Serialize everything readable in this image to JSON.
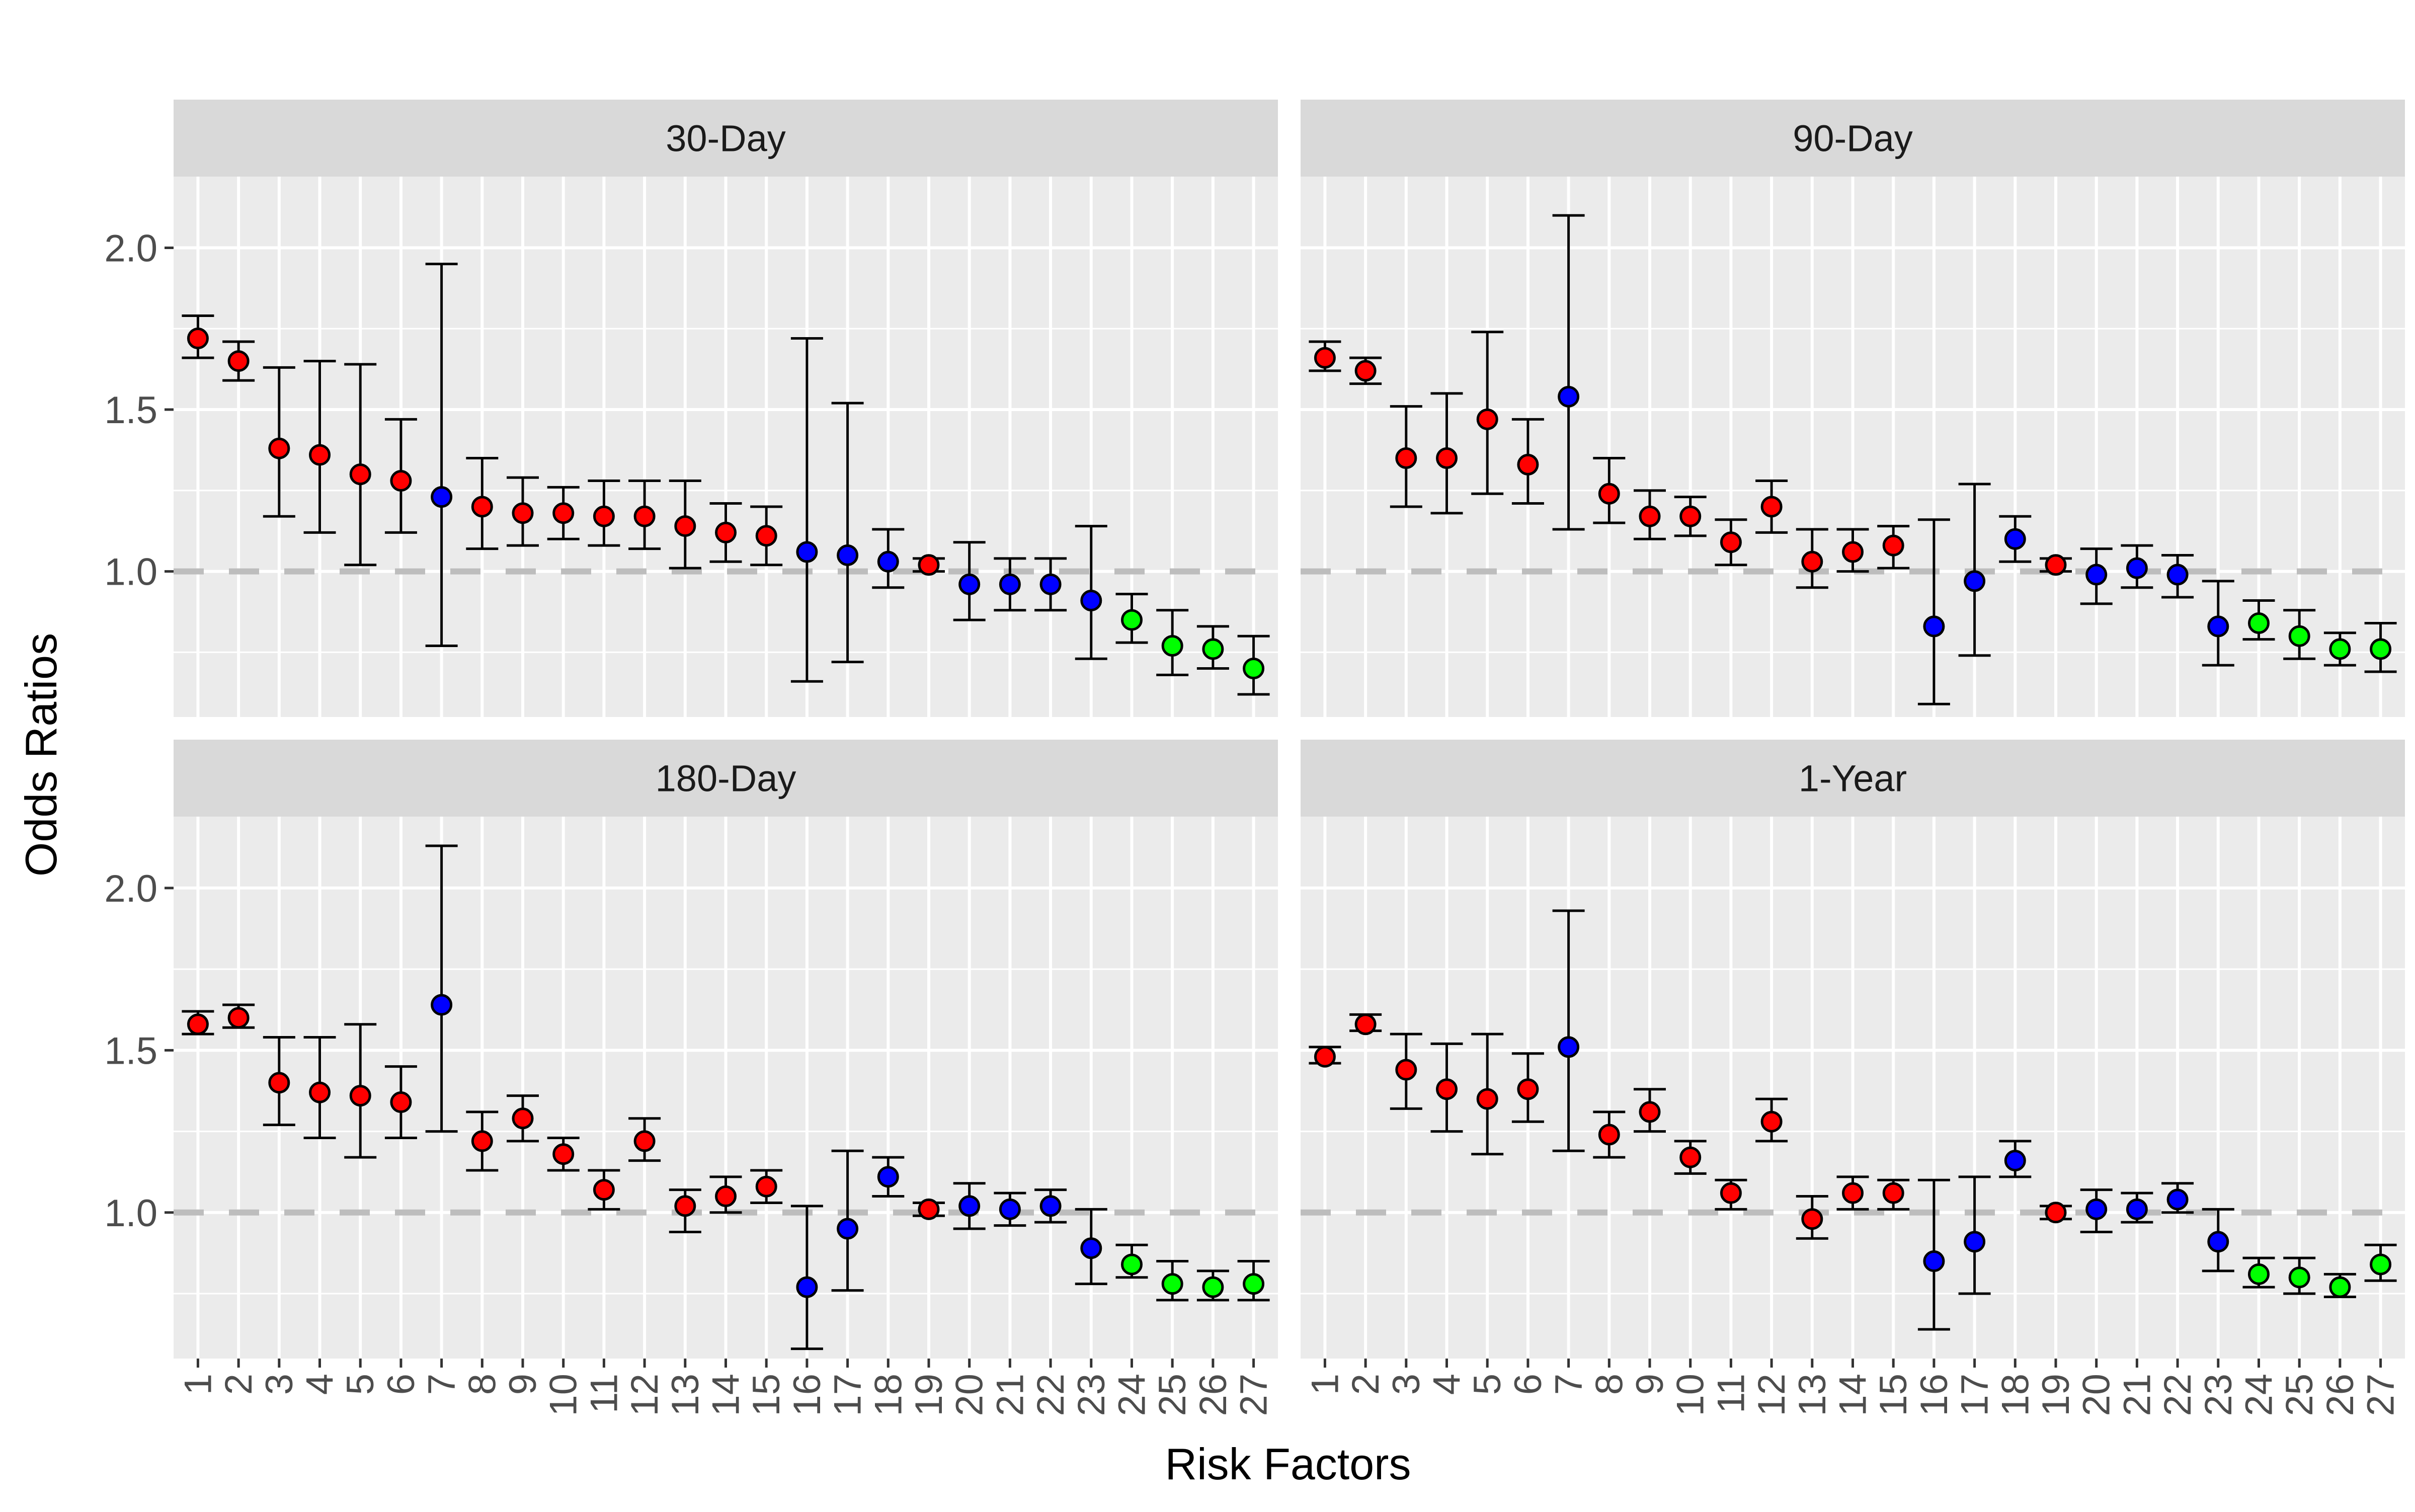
{
  "chart_data": {
    "type": "scatter",
    "facet_layout": "2x2",
    "xlabel": "Risk Factors",
    "ylabel": "Odds Ratios",
    "x": [
      1,
      2,
      3,
      4,
      5,
      6,
      7,
      8,
      9,
      10,
      11,
      12,
      13,
      14,
      15,
      16,
      17,
      18,
      19,
      20,
      21,
      22,
      23,
      24,
      25,
      26,
      27
    ],
    "yticks": [
      "1.0",
      "1.5",
      "2.0"
    ],
    "ylim": [
      0.55,
      2.22
    ],
    "reference_line": 1.0,
    "grid": true,
    "colors": {
      "red": "#ff0000",
      "blue": "#0000ff",
      "green": "#00ff00",
      "panel_bg": "#ebebeb",
      "strip_bg": "#d9d9d9",
      "refline": "#bdbdbd"
    },
    "point_colors": [
      "red",
      "red",
      "red",
      "red",
      "red",
      "red",
      "blue",
      "red",
      "red",
      "red",
      "red",
      "red",
      "red",
      "red",
      "red",
      "blue",
      "blue",
      "blue",
      "red",
      "blue",
      "blue",
      "blue",
      "blue",
      "green",
      "green",
      "green",
      "green"
    ],
    "panels": [
      {
        "title": "30-Day",
        "or": [
          1.72,
          1.65,
          1.38,
          1.36,
          1.3,
          1.28,
          1.23,
          1.2,
          1.18,
          1.18,
          1.17,
          1.17,
          1.14,
          1.12,
          1.11,
          1.06,
          1.05,
          1.03,
          1.02,
          0.96,
          0.96,
          0.96,
          0.91,
          0.85,
          0.77,
          0.76,
          0.7
        ],
        "lower": [
          1.66,
          1.59,
          1.17,
          1.12,
          1.02,
          1.12,
          0.77,
          1.07,
          1.08,
          1.1,
          1.08,
          1.07,
          1.01,
          1.03,
          1.02,
          0.66,
          0.72,
          0.95,
          1.0,
          0.85,
          0.88,
          0.88,
          0.73,
          0.78,
          0.68,
          0.7,
          0.62
        ],
        "upper": [
          1.79,
          1.71,
          1.63,
          1.65,
          1.64,
          1.47,
          1.95,
          1.35,
          1.29,
          1.26,
          1.28,
          1.28,
          1.28,
          1.21,
          1.2,
          1.72,
          1.52,
          1.13,
          1.04,
          1.09,
          1.04,
          1.04,
          1.14,
          0.93,
          0.88,
          0.83,
          0.8
        ]
      },
      {
        "title": "90-Day",
        "or": [
          1.66,
          1.62,
          1.35,
          1.35,
          1.47,
          1.33,
          1.54,
          1.24,
          1.17,
          1.17,
          1.09,
          1.2,
          1.03,
          1.06,
          1.08,
          0.83,
          0.97,
          1.1,
          1.02,
          0.99,
          1.01,
          0.99,
          0.83,
          0.84,
          0.8,
          0.76,
          0.76
        ],
        "lower": [
          1.62,
          1.58,
          1.2,
          1.18,
          1.24,
          1.21,
          1.13,
          1.15,
          1.1,
          1.11,
          1.02,
          1.12,
          0.95,
          1.0,
          1.01,
          0.59,
          0.74,
          1.03,
          1.0,
          0.9,
          0.95,
          0.92,
          0.71,
          0.79,
          0.73,
          0.71,
          0.69
        ],
        "upper": [
          1.71,
          1.66,
          1.51,
          1.55,
          1.74,
          1.47,
          2.1,
          1.35,
          1.25,
          1.23,
          1.16,
          1.28,
          1.13,
          1.13,
          1.14,
          1.16,
          1.27,
          1.17,
          1.04,
          1.07,
          1.08,
          1.05,
          0.97,
          0.91,
          0.88,
          0.81,
          0.84
        ]
      },
      {
        "title": "180-Day",
        "or": [
          1.58,
          1.6,
          1.4,
          1.37,
          1.36,
          1.34,
          1.64,
          1.22,
          1.29,
          1.18,
          1.07,
          1.22,
          1.02,
          1.05,
          1.08,
          0.77,
          0.95,
          1.11,
          1.01,
          1.02,
          1.01,
          1.02,
          0.89,
          0.84,
          0.78,
          0.77,
          0.78
        ],
        "lower": [
          1.55,
          1.57,
          1.27,
          1.23,
          1.17,
          1.23,
          1.25,
          1.13,
          1.22,
          1.13,
          1.01,
          1.16,
          0.94,
          1.0,
          1.03,
          0.58,
          0.76,
          1.05,
          0.99,
          0.95,
          0.96,
          0.97,
          0.78,
          0.8,
          0.73,
          0.73,
          0.73
        ],
        "upper": [
          1.62,
          1.64,
          1.54,
          1.54,
          1.58,
          1.45,
          2.13,
          1.31,
          1.36,
          1.23,
          1.13,
          1.29,
          1.07,
          1.11,
          1.13,
          1.02,
          1.19,
          1.17,
          1.03,
          1.09,
          1.06,
          1.07,
          1.01,
          0.9,
          0.85,
          0.82,
          0.85
        ]
      },
      {
        "title": "1-Year",
        "or": [
          1.48,
          1.58,
          1.44,
          1.38,
          1.35,
          1.38,
          1.51,
          1.24,
          1.31,
          1.17,
          1.06,
          1.28,
          0.98,
          1.06,
          1.06,
          0.85,
          0.91,
          1.16,
          1.0,
          1.01,
          1.01,
          1.04,
          0.91,
          0.81,
          0.8,
          0.77,
          0.84
        ],
        "lower": [
          1.46,
          1.56,
          1.32,
          1.25,
          1.18,
          1.28,
          1.19,
          1.17,
          1.25,
          1.12,
          1.01,
          1.22,
          0.92,
          1.01,
          1.01,
          0.64,
          0.75,
          1.11,
          0.98,
          0.94,
          0.97,
          1.0,
          0.82,
          0.77,
          0.75,
          0.74,
          0.79
        ],
        "upper": [
          1.51,
          1.61,
          1.55,
          1.52,
          1.55,
          1.49,
          1.93,
          1.31,
          1.38,
          1.22,
          1.1,
          1.35,
          1.05,
          1.11,
          1.1,
          1.1,
          1.11,
          1.22,
          1.02,
          1.07,
          1.06,
          1.09,
          1.01,
          0.86,
          0.86,
          0.81,
          0.9
        ]
      }
    ]
  }
}
